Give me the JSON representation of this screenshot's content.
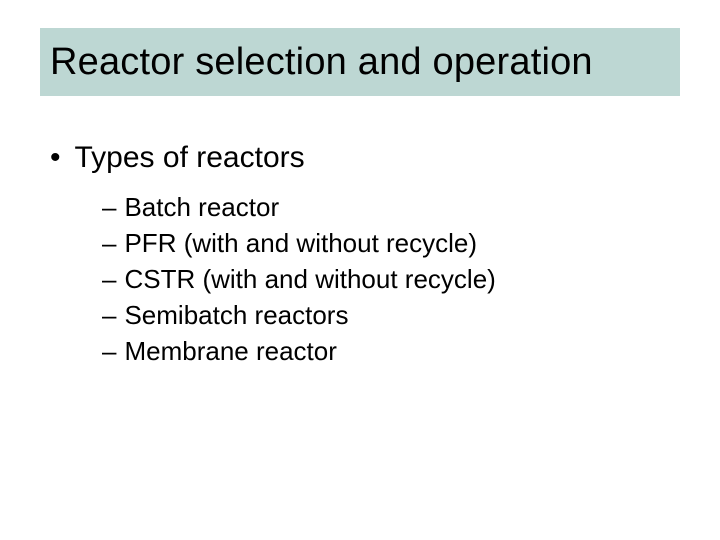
{
  "slide": {
    "title": "Reactor selection and operation",
    "title_band_color": "#bdd7d3",
    "title_fontsize": 38,
    "background_color": "#ffffff",
    "bullet": {
      "marker": "•",
      "text": "Types of reactors",
      "fontsize": 30
    },
    "sub_items": [
      {
        "marker": "–",
        "text": "Batch reactor"
      },
      {
        "marker": "–",
        "text": "PFR  (with and without recycle)"
      },
      {
        "marker": "–",
        "text": "CSTR (with and without recycle)"
      },
      {
        "marker": "–",
        "text": "Semibatch reactors"
      },
      {
        "marker": "–",
        "text": "Membrane reactor"
      }
    ],
    "sub_fontsize": 26
  }
}
